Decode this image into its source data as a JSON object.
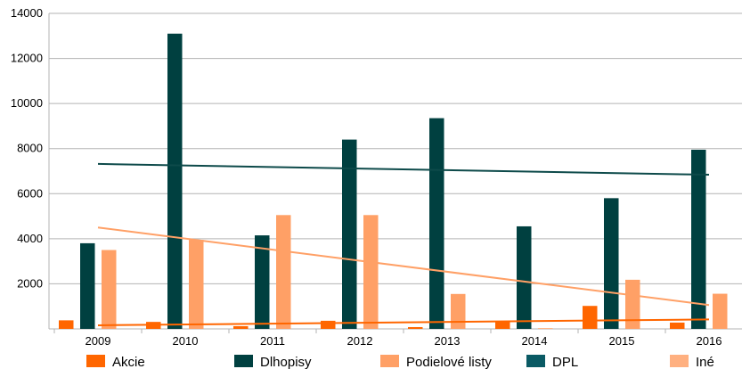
{
  "chart_data": {
    "type": "bar",
    "categories": [
      "2009",
      "2010",
      "2011",
      "2012",
      "2013",
      "2014",
      "2015",
      "2016"
    ],
    "ylim": [
      0,
      14000
    ],
    "yticks": [
      2000,
      4000,
      6000,
      8000,
      10000,
      12000,
      14000
    ],
    "grid": true,
    "legend_position": "bottom",
    "series": [
      {
        "name": "Akcie",
        "color": "#ff6600",
        "values": [
          380,
          310,
          120,
          360,
          80,
          350,
          1020,
          280
        ]
      },
      {
        "name": "Dlhopisy",
        "color": "#004040",
        "values": [
          3800,
          13100,
          4150,
          8400,
          9350,
          4550,
          5800,
          7950
        ]
      },
      {
        "name": "Podielové listy",
        "color": "#ffa066",
        "values": [
          3500,
          3950,
          5050,
          5050,
          1550,
          30,
          2180,
          1560
        ]
      },
      {
        "name": "DPL",
        "color": "#0a5a64",
        "values": [
          0,
          0,
          0,
          0,
          0,
          0,
          0,
          0
        ]
      },
      {
        "name": "Iné",
        "color": "#ffb080",
        "values": [
          0,
          0,
          0,
          0,
          0,
          0,
          0,
          0
        ]
      }
    ],
    "trendlines": [
      {
        "series": "Dlhopisy",
        "color": "#0d4a4a",
        "start": 7320,
        "end": 6840
      },
      {
        "series": "Podielové listy",
        "color": "#ffa066",
        "start": 4500,
        "end": 1060
      },
      {
        "series": "Akcie",
        "color": "#ff6600",
        "start": 160,
        "end": 420
      }
    ]
  }
}
